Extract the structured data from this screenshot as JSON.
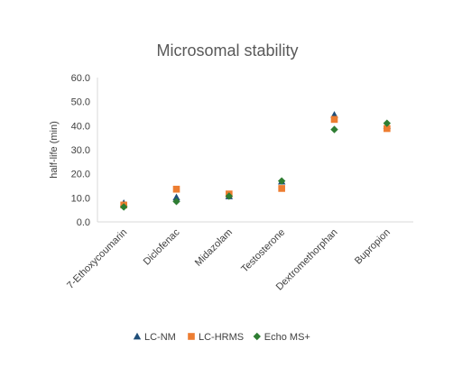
{
  "chart_data": {
    "type": "scatter",
    "title": "Microsomal stability",
    "xlabel": "",
    "ylabel": "half-life (min)",
    "ylim": [
      0,
      60
    ],
    "yticks": [
      "0.0",
      "10.0",
      "20.0",
      "30.0",
      "40.0",
      "50.0",
      "60.0"
    ],
    "categories": [
      "7-Ethoxycoumarin",
      "Diclofenac",
      "Midazolam",
      "Testosterone",
      "Dextromethorphan",
      "Bupropion"
    ],
    "grid": false,
    "legend_position": "bottom",
    "series": [
      {
        "name": "LC-NM",
        "marker": "triangle",
        "color": "#1f4e79",
        "values": [
          7.8,
          10.2,
          10.7,
          16.8,
          44.5,
          40.0
        ]
      },
      {
        "name": "LC-HRMS",
        "marker": "square",
        "color": "#ed7d31",
        "values": [
          7.0,
          13.6,
          11.6,
          13.9,
          42.6,
          38.8
        ]
      },
      {
        "name": "Echo MS+",
        "marker": "diamond",
        "color": "#2e7d32",
        "values": [
          6.2,
          8.5,
          10.7,
          17.0,
          38.4,
          41.0
        ]
      }
    ]
  }
}
